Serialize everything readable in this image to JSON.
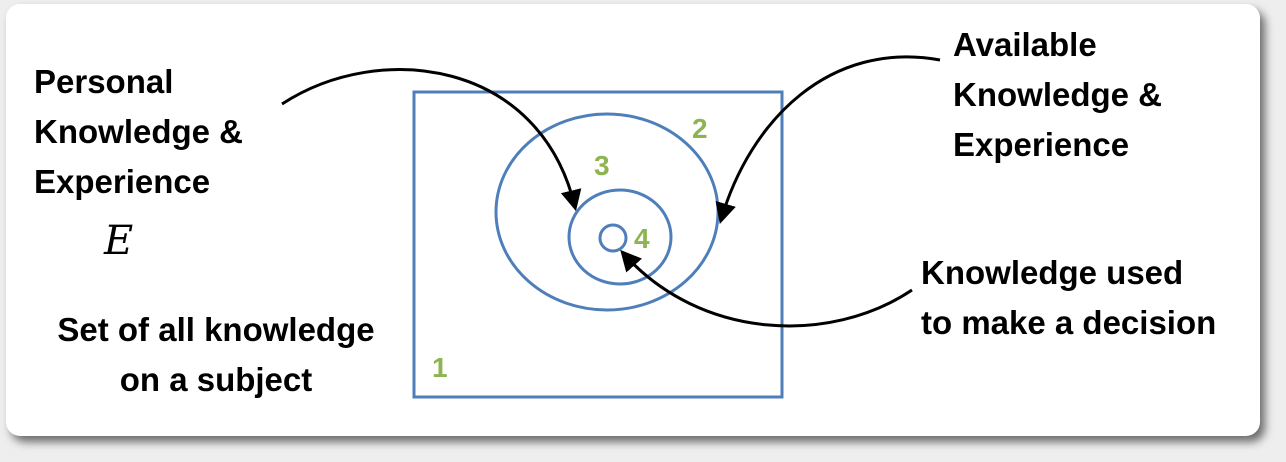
{
  "labels": {
    "personal_line1": "Personal",
    "personal_line2": "Knowledge &",
    "personal_line3": "Experience",
    "personal_symbol": "E",
    "available_line1": "Available",
    "available_line2": "Knowledge &",
    "available_line3": "Experience",
    "decision_line1": "Knowledge used",
    "decision_line2": "to make a decision",
    "set_line1": "Set of all knowledge",
    "set_line2": "on a subject"
  },
  "regions": {
    "n1": "1",
    "n2": "2",
    "n3": "3",
    "n4": "4"
  },
  "colors": {
    "shape_stroke": "#4f7fba",
    "number_fill": "#8db450",
    "arrow": "#000000"
  }
}
